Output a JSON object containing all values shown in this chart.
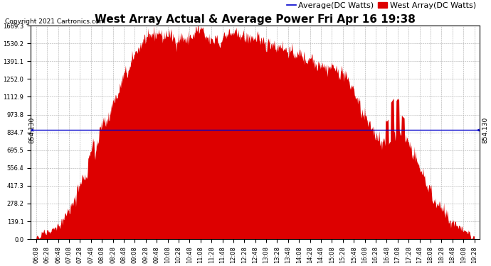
{
  "title": "West Array Actual & Average Power Fri Apr 16 19:38",
  "copyright": "Copyright 2021 Cartronics.com",
  "legend_avg": "Average(DC Watts)",
  "legend_west": "West Array(DC Watts)",
  "avg_value": 854.13,
  "avg_label": "854.130",
  "yticks": [
    0.0,
    139.1,
    278.2,
    417.3,
    556.4,
    695.5,
    834.7,
    973.8,
    1112.9,
    1252.0,
    1391.1,
    1530.2,
    1669.3
  ],
  "ymax": 1669.3,
  "ymin": 0.0,
  "fill_color": "#dd0000",
  "avg_line_color": "#0000cc",
  "background_color": "#ffffff",
  "title_fontsize": 11,
  "copyright_fontsize": 6.5,
  "legend_fontsize": 8,
  "tick_fontsize": 6,
  "avg_label_fontsize": 6.5,
  "xtick_labels": [
    "06:08",
    "06:28",
    "06:48",
    "07:08",
    "07:28",
    "07:48",
    "08:08",
    "08:28",
    "08:48",
    "09:08",
    "09:28",
    "09:48",
    "10:08",
    "10:28",
    "10:48",
    "11:08",
    "11:28",
    "11:48",
    "12:08",
    "12:28",
    "12:48",
    "13:08",
    "13:28",
    "13:48",
    "14:08",
    "14:28",
    "14:48",
    "15:08",
    "15:28",
    "15:48",
    "16:08",
    "16:28",
    "16:48",
    "17:08",
    "17:28",
    "17:48",
    "18:08",
    "18:28",
    "18:48",
    "19:08",
    "19:28"
  ]
}
